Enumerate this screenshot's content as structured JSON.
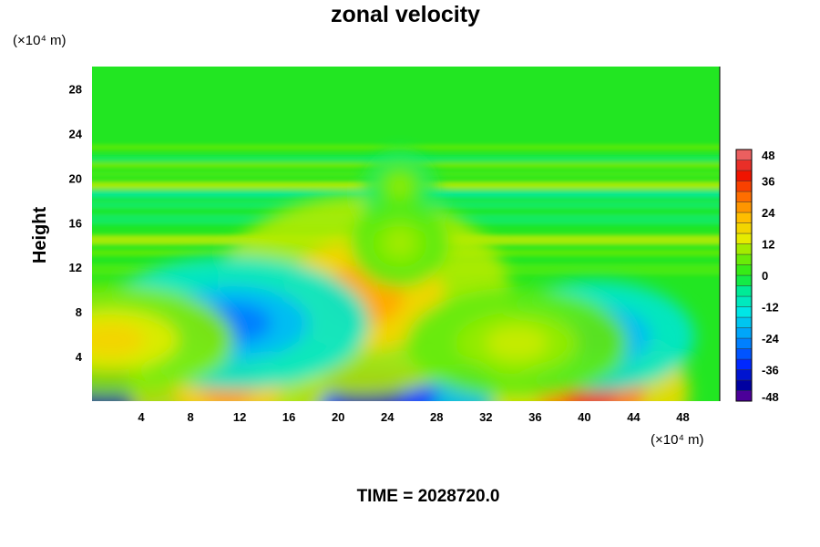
{
  "chart_data": {
    "type": "heatmap",
    "title": "zonal velocity",
    "xlabel": "",
    "ylabel": "Height",
    "x_unit": "(×10⁴ m)",
    "y_unit": "(×10⁴ m)",
    "xlim": [
      0,
      51
    ],
    "ylim": [
      0,
      30
    ],
    "x_ticks": [
      "4",
      "8",
      "12",
      "16",
      "20",
      "24",
      "28",
      "32",
      "36",
      "40",
      "44",
      "48"
    ],
    "y_ticks": [
      "4",
      "8",
      "12",
      "16",
      "20",
      "24",
      "28"
    ],
    "colorbar": {
      "min": -48,
      "max": 48,
      "step": 4,
      "tick_labels": [
        "48",
        "36",
        "24",
        "12",
        "0",
        "-12",
        "-24",
        "-36",
        "-48"
      ]
    },
    "features": [
      {
        "x": 1.5,
        "y": 0.3,
        "value": -44
      },
      {
        "x": 22.5,
        "y": 0.4,
        "value": -44
      },
      {
        "x": 11.0,
        "y": 1.5,
        "value": 26
      },
      {
        "x": 40.5,
        "y": 0.8,
        "value": 38
      },
      {
        "x": 22.0,
        "y": 9.5,
        "value": 24
      },
      {
        "x": 11.5,
        "y": 7.0,
        "value": -26
      },
      {
        "x": 41.0,
        "y": 5.8,
        "value": -26
      },
      {
        "x": 1.5,
        "y": 5.5,
        "value": 18
      },
      {
        "x": 34.5,
        "y": 5.2,
        "value": 12
      },
      {
        "x": 25.0,
        "y": 18.5,
        "value": -8
      },
      {
        "x": 25.0,
        "y": 19.3,
        "value": 10
      },
      {
        "x": 25.0,
        "y": 14.2,
        "value": 10
      }
    ],
    "footer": "TIME = 2028720.0"
  }
}
